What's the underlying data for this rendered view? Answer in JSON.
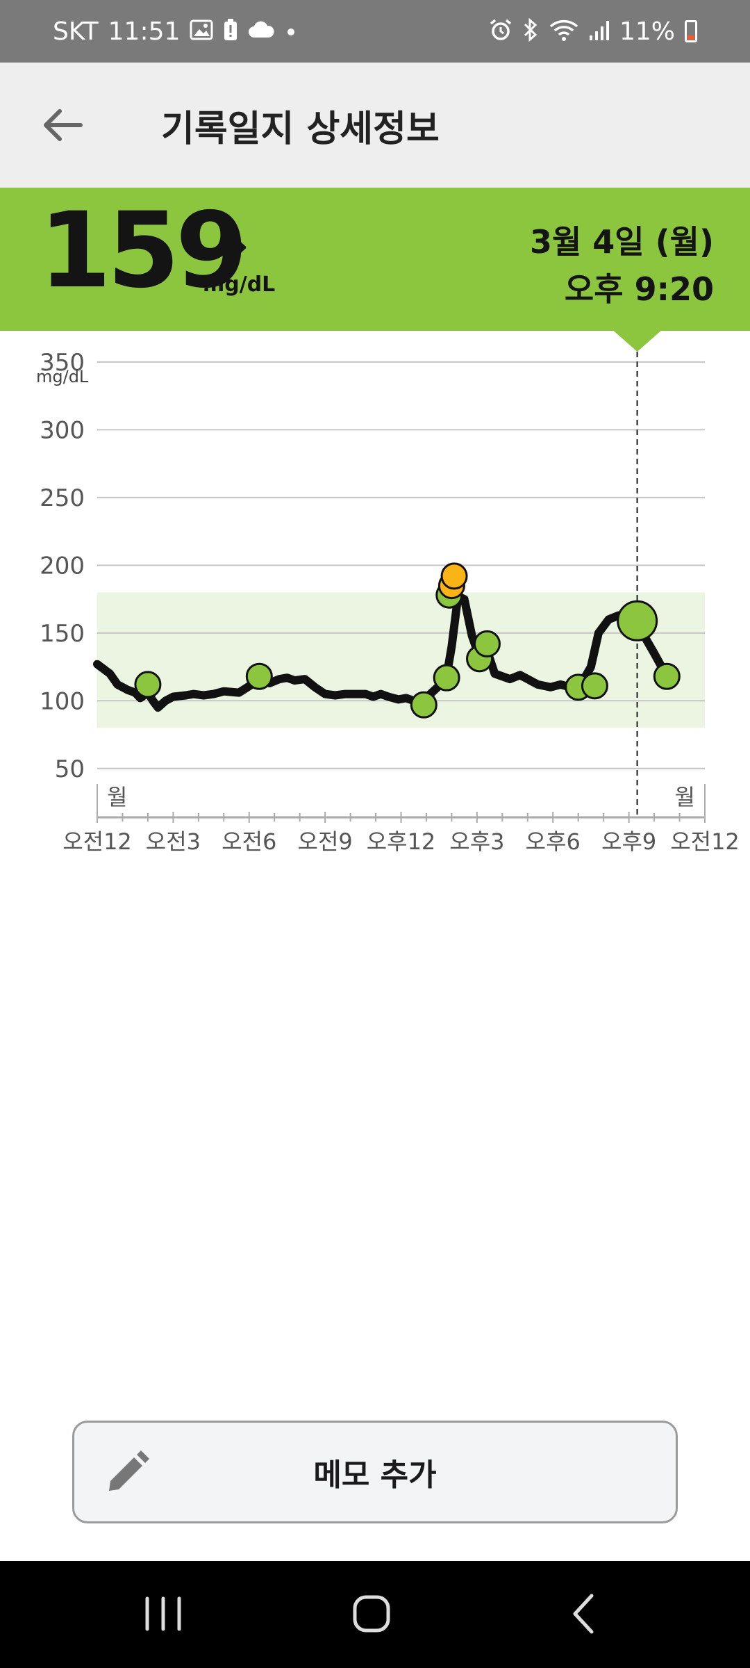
{
  "status_bar": {
    "carrier": "SKT",
    "time": "11:51",
    "battery": "11%",
    "icons": [
      "gallery-icon",
      "alert-icon",
      "cloud-icon",
      "dot-icon",
      "alarm-icon",
      "bluetooth-icon",
      "wifi-icon",
      "signal-icon",
      "battery-icon"
    ]
  },
  "header": {
    "title": "기록일지 상세정보",
    "back_icon": "arrow-left-icon"
  },
  "reading": {
    "value": "159",
    "unit": "mg/dL",
    "trend_icon": "arrow-right-icon",
    "date": "3월 4일 (월)",
    "time": "오후 9:20"
  },
  "chart_data": {
    "type": "line",
    "ylabel": "mg/dL",
    "y_ticks": [
      350,
      300,
      250,
      200,
      150,
      100,
      50
    ],
    "ylim": [
      14,
      373
    ],
    "xlim": [
      0,
      24
    ],
    "x_ticks": [
      "오전12",
      "오전3",
      "오전6",
      "오전9",
      "오후12",
      "오후3",
      "오후6",
      "오후9",
      "오전12"
    ],
    "x_tick_hours": [
      0,
      3,
      6,
      9,
      12,
      15,
      18,
      21,
      24
    ],
    "day_labels": {
      "start": "월",
      "end": "월"
    },
    "target_range": [
      80,
      180
    ],
    "selected_hour": 21.33,
    "colors": {
      "line": "#111111",
      "in_range": "#8cc63f",
      "high": "#fbb416",
      "target_band": "#ebf5e1"
    },
    "series": [
      {
        "values": [
          [
            0,
            127
          ],
          [
            0.5,
            120
          ],
          [
            0.8,
            112
          ],
          [
            1.2,
            108
          ],
          [
            1.5,
            106
          ],
          [
            1.7,
            102
          ],
          [
            2.0,
            106
          ],
          [
            2.2,
            100
          ],
          [
            2.4,
            95
          ],
          [
            2.7,
            100
          ],
          [
            3.0,
            103
          ],
          [
            3.5,
            104
          ],
          [
            3.8,
            105
          ],
          [
            4.2,
            104
          ],
          [
            4.6,
            105
          ],
          [
            5.0,
            107
          ],
          [
            5.6,
            106
          ],
          [
            6.1,
            112
          ],
          [
            6.4,
            117
          ],
          [
            6.8,
            113
          ],
          [
            7.2,
            116
          ],
          [
            7.5,
            117
          ],
          [
            7.8,
            115
          ],
          [
            8.2,
            116
          ],
          [
            8.6,
            110
          ],
          [
            9.0,
            105
          ],
          [
            9.4,
            104
          ],
          [
            9.8,
            105
          ],
          [
            10.3,
            105
          ],
          [
            10.6,
            105
          ],
          [
            10.9,
            103
          ],
          [
            11.2,
            105
          ],
          [
            11.5,
            103
          ],
          [
            11.9,
            101
          ],
          [
            12.2,
            102
          ],
          [
            12.5,
            100
          ],
          [
            12.8,
            100
          ],
          [
            13.1,
            104
          ],
          [
            13.5,
            111
          ],
          [
            13.8,
            118
          ],
          [
            14.0,
            140
          ],
          [
            14.25,
            177
          ],
          [
            14.5,
            175
          ],
          [
            14.8,
            148
          ],
          [
            15.1,
            132
          ],
          [
            15.4,
            137
          ],
          [
            15.7,
            120
          ],
          [
            16.0,
            118
          ],
          [
            16.3,
            116
          ],
          [
            16.7,
            119
          ],
          [
            17.0,
            116
          ],
          [
            17.4,
            112
          ],
          [
            17.9,
            110
          ],
          [
            18.3,
            112
          ],
          [
            18.7,
            110
          ],
          [
            19.1,
            112
          ],
          [
            19.5,
            125
          ],
          [
            19.8,
            150
          ],
          [
            20.2,
            160
          ],
          [
            20.6,
            163
          ],
          [
            21.0,
            158
          ],
          [
            21.3,
            154
          ],
          [
            21.6,
            148
          ],
          [
            22.0,
            135
          ],
          [
            22.5,
            118
          ]
        ]
      }
    ],
    "markers": [
      {
        "x": 2.0,
        "y": 112,
        "status": "in_range"
      },
      {
        "x": 6.4,
        "y": 118,
        "status": "in_range"
      },
      {
        "x": 12.9,
        "y": 97,
        "status": "in_range"
      },
      {
        "x": 13.8,
        "y": 117,
        "status": "in_range"
      },
      {
        "x": 13.9,
        "y": 178,
        "status": "in_range"
      },
      {
        "x": 14.0,
        "y": 185,
        "status": "high"
      },
      {
        "x": 14.1,
        "y": 192,
        "status": "high"
      },
      {
        "x": 15.1,
        "y": 131,
        "status": "in_range"
      },
      {
        "x": 15.4,
        "y": 142,
        "status": "in_range"
      },
      {
        "x": 19.0,
        "y": 110,
        "status": "in_range"
      },
      {
        "x": 19.65,
        "y": 111,
        "status": "in_range"
      },
      {
        "x": 21.33,
        "y": 159,
        "status": "in_range",
        "selected": true
      },
      {
        "x": 22.5,
        "y": 118,
        "status": "in_range"
      }
    ]
  },
  "memo_button": {
    "label": "메모 추가",
    "icon": "pencil-icon"
  },
  "nav_bar": {
    "icons": [
      "recent-apps-icon",
      "home-icon",
      "back-icon"
    ]
  }
}
